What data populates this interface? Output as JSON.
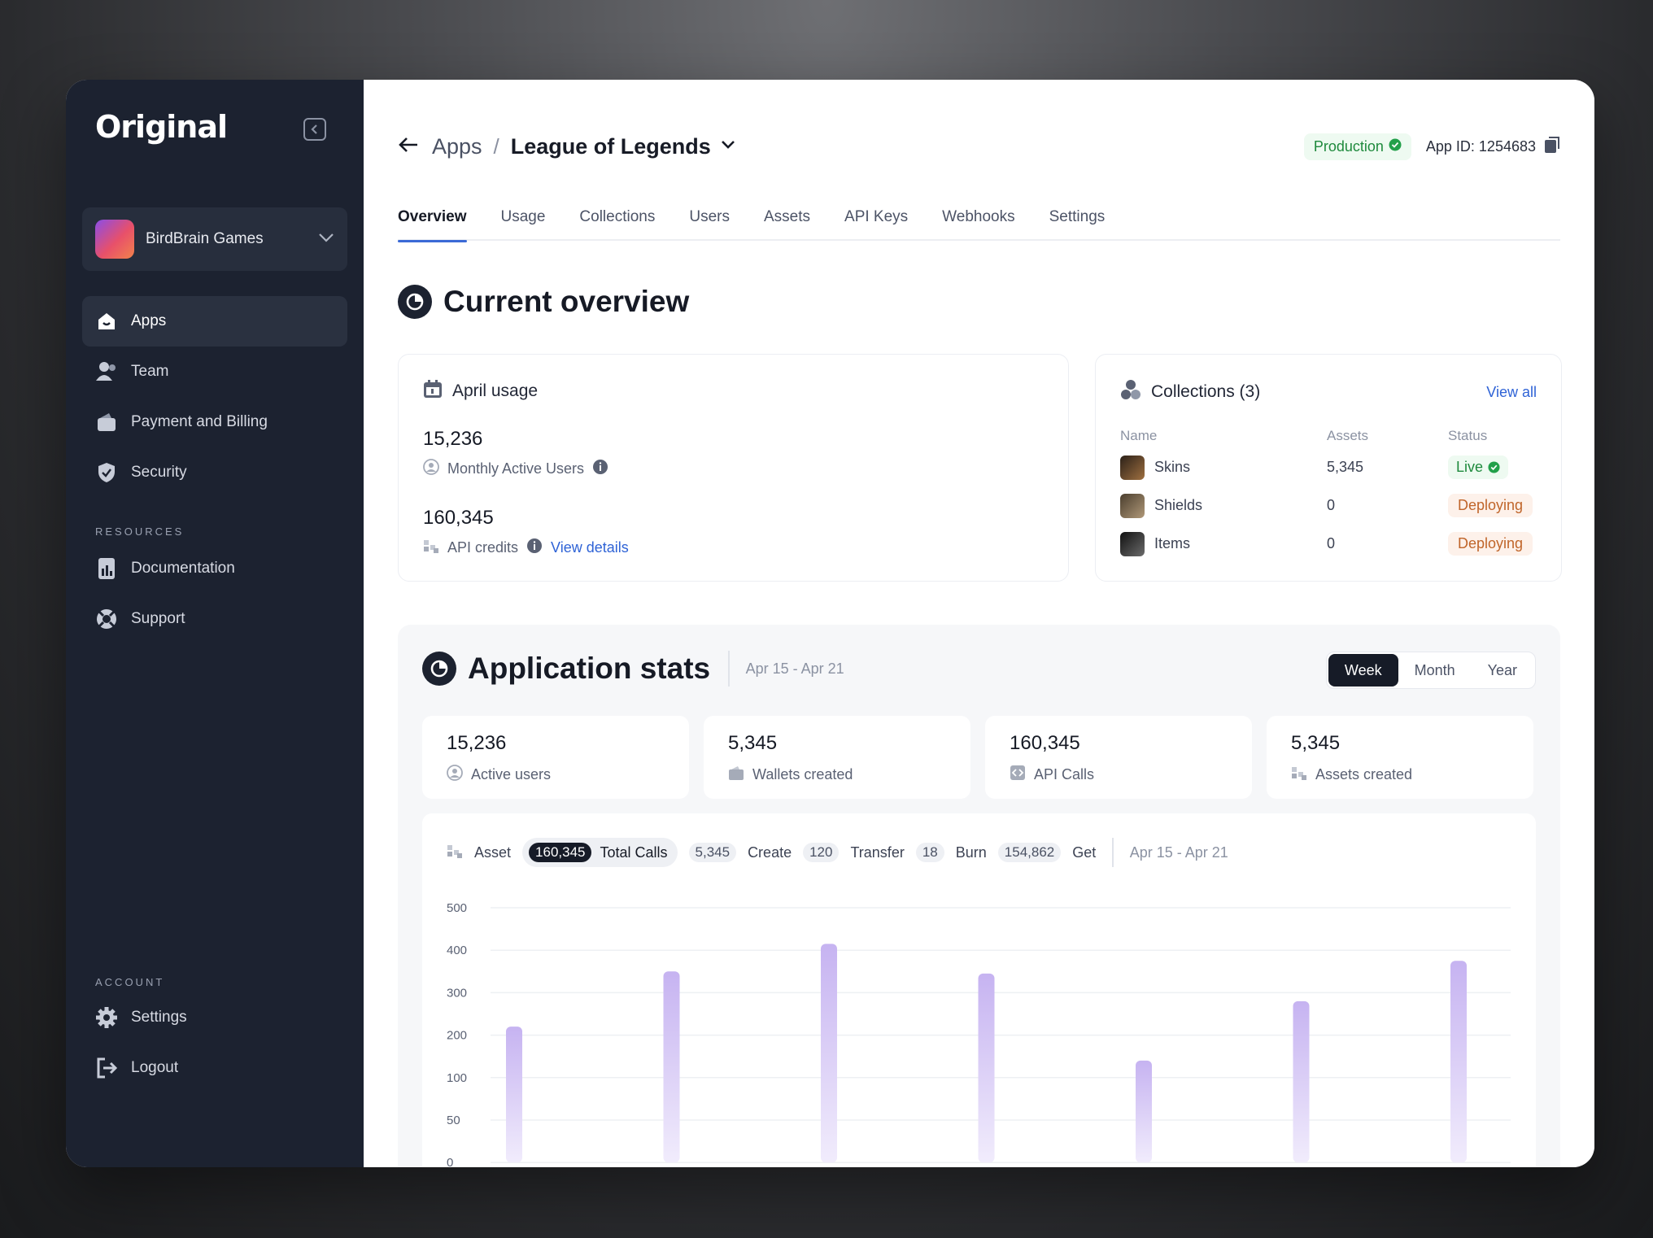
{
  "brand": {
    "logo": "Original"
  },
  "org": {
    "name": "BirdBrain Games"
  },
  "nav": {
    "apps": "Apps",
    "team": "Team",
    "billing": "Payment and Billing",
    "security": "Security",
    "resources_label": "RESOURCES",
    "documentation": "Documentation",
    "support": "Support",
    "account_label": "ACCOUNT",
    "settings": "Settings",
    "logout": "Logout"
  },
  "header": {
    "crumb_root": "Apps",
    "crumb_sep": "/",
    "app_name": "League of Legends",
    "environment": "Production",
    "app_id": "App ID: 1254683"
  },
  "tabs": [
    "Overview",
    "Usage",
    "Collections",
    "Users",
    "Assets",
    "API Keys",
    "Webhooks",
    "Settings"
  ],
  "overview": {
    "title": "Current overview",
    "usage": {
      "title": "April usage",
      "mau_value": "15,236",
      "mau_label": "Monthly Active Users",
      "credits_value": "160,345",
      "credits_label": "API credits",
      "details_link": "View details"
    },
    "collections": {
      "title": "Collections (3)",
      "view_all": "View all",
      "headers": {
        "name": "Name",
        "assets": "Assets",
        "status": "Status"
      },
      "rows": [
        {
          "name": "Skins",
          "assets": "5,345",
          "status": "Live"
        },
        {
          "name": "Shields",
          "assets": "0",
          "status": "Deploying"
        },
        {
          "name": "Items",
          "assets": "0",
          "status": "Deploying"
        }
      ]
    }
  },
  "stats": {
    "title": "Application stats",
    "range": "Apr 15 - Apr 21",
    "periods": [
      "Week",
      "Month",
      "Year"
    ],
    "selected_period": "Week",
    "cards": [
      {
        "value": "15,236",
        "label": "Active users"
      },
      {
        "value": "5,345",
        "label": "Wallets created"
      },
      {
        "value": "160,345",
        "label": "API Calls"
      },
      {
        "value": "5,345",
        "label": "Assets created"
      }
    ],
    "filters": {
      "asset": "Asset",
      "total_value": "160,345",
      "total_label": "Total Calls",
      "create_value": "5,345",
      "create_label": "Create",
      "transfer_value": "120",
      "transfer_label": "Transfer",
      "burn_value": "18",
      "burn_label": "Burn",
      "get_value": "154,862",
      "get_label": "Get",
      "range": "Apr 15 - Apr 21"
    }
  },
  "chart_data": {
    "type": "bar",
    "y_ticks": [
      500,
      400,
      300,
      200,
      100,
      50,
      0
    ],
    "values": [
      220,
      350,
      415,
      345,
      140,
      280,
      375
    ],
    "color": "#c6b3f1",
    "grid": true
  }
}
